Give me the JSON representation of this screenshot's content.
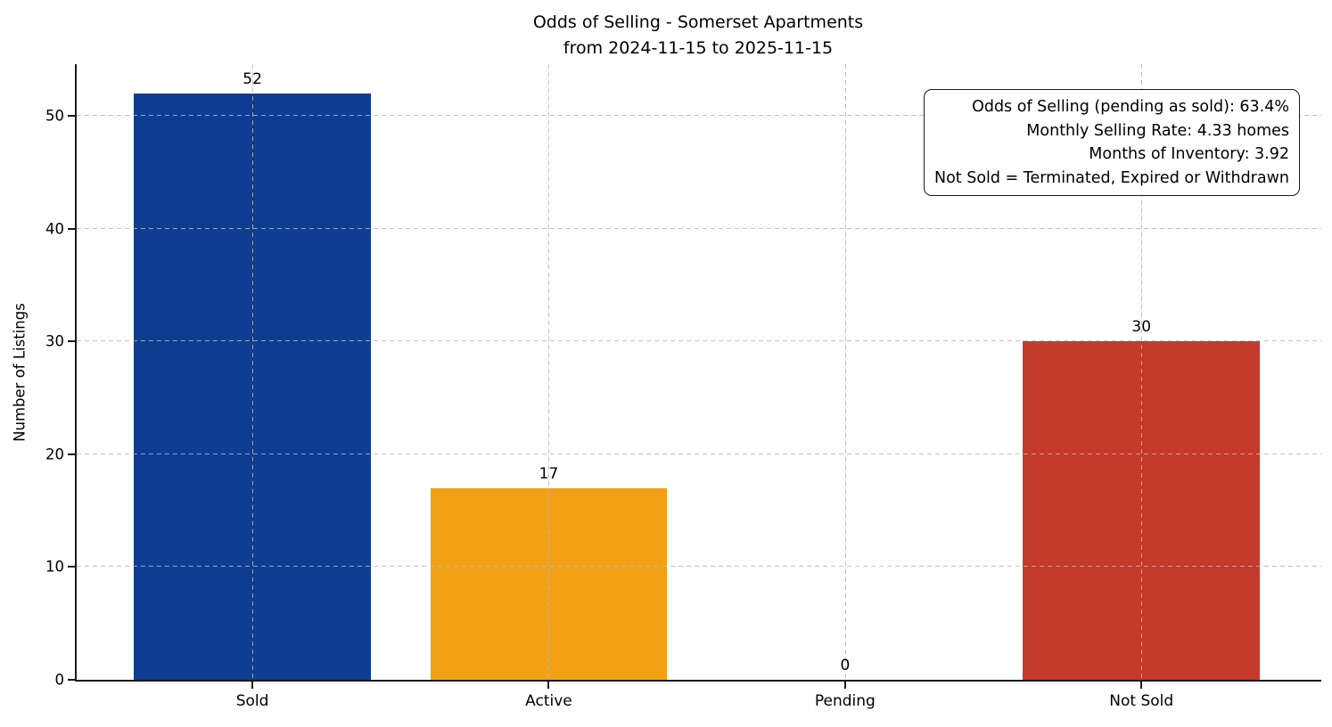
{
  "chart_data": {
    "type": "bar",
    "title_line1": "Odds of Selling - Somerset Apartments",
    "title_line2": "from 2024-11-15 to 2025-11-15",
    "ylabel": "Number of Listings",
    "xlabel": "",
    "categories": [
      "Sold",
      "Active",
      "Pending",
      "Not Sold"
    ],
    "values": [
      52,
      17,
      0,
      30
    ],
    "bar_colors": [
      "#0e3d92",
      "#f2a014",
      "#808080",
      "#c43b2c"
    ],
    "value_labels": [
      "52",
      "17",
      "0",
      "30"
    ],
    "yticks": [
      0,
      10,
      20,
      30,
      40,
      50
    ],
    "ylim": [
      0,
      54.6
    ],
    "grid": {
      "style": "dashed",
      "axes": "both",
      "color": "#b9b9b9",
      "drawn_over_bars": true
    },
    "legend": "none",
    "annotation": {
      "position": "top-right",
      "align": "right",
      "lines": [
        "Odds of Selling (pending as sold): 63.4%",
        "Monthly Selling Rate: 4.33 homes",
        "Months of Inventory: 3.92",
        "Not Sold = Terminated, Expired or Withdrawn"
      ]
    }
  }
}
